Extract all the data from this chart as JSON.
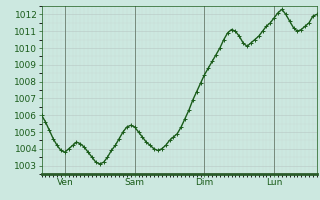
{
  "background_color": "#cce8e0",
  "plot_bg_color": "#cce8e0",
  "line_color": "#1a5c1a",
  "marker_color": "#1a5c1a",
  "grid_color_major": "#b8c8c4",
  "grid_color_minor": "#c8d8d4",
  "ylim": [
    1002.5,
    1012.5
  ],
  "yticks": [
    1003,
    1004,
    1005,
    1006,
    1007,
    1008,
    1009,
    1010,
    1011,
    1012
  ],
  "xtick_labels": [
    "Ven",
    "Sam",
    "Dim",
    "Lun"
  ],
  "x_values": [
    0,
    1,
    2,
    3,
    4,
    5,
    6,
    7,
    8,
    9,
    10,
    11,
    12,
    13,
    14,
    15,
    16,
    17,
    18,
    19,
    20,
    21,
    22,
    23,
    24,
    25,
    26,
    27,
    28,
    29,
    30,
    31,
    32,
    33,
    34,
    35,
    36,
    37,
    38,
    39,
    40,
    41,
    42,
    43,
    44,
    45,
    46,
    47,
    48,
    49,
    50,
    51,
    52,
    53,
    54,
    55,
    56,
    57,
    58,
    59,
    60,
    61,
    62,
    63,
    64,
    65,
    66,
    67,
    68,
    69,
    70,
    71
  ],
  "y_values": [
    1006.0,
    1005.6,
    1005.1,
    1004.6,
    1004.2,
    1003.9,
    1003.8,
    1004.0,
    1004.2,
    1004.4,
    1004.3,
    1004.1,
    1003.8,
    1003.5,
    1003.2,
    1003.1,
    1003.2,
    1003.5,
    1003.9,
    1004.2,
    1004.6,
    1005.0,
    1005.3,
    1005.4,
    1005.3,
    1005.0,
    1004.7,
    1004.4,
    1004.2,
    1004.0,
    1003.9,
    1004.0,
    1004.2,
    1004.5,
    1004.7,
    1004.9,
    1005.3,
    1005.8,
    1006.3,
    1006.9,
    1007.4,
    1007.9,
    1008.4,
    1008.8,
    1009.2,
    1009.6,
    1010.0,
    1010.5,
    1010.9,
    1011.1,
    1011.0,
    1010.7,
    1010.3,
    1010.1,
    1010.3,
    1010.5,
    1010.7,
    1011.0,
    1011.3,
    1011.5,
    1011.8,
    1012.1,
    1012.3,
    1012.0,
    1011.6,
    1011.2,
    1011.0,
    1011.1,
    1011.3,
    1011.5,
    1011.9,
    1012.0
  ],
  "vline_color": "#556655",
  "tick_color": "#1a5c1a",
  "axis_color": "#1a5c1a",
  "bottom_bar_color": "#2a5c2a",
  "font_size_ticks": 6.5,
  "line_width": 1.0,
  "marker_size": 2.5,
  "xtick_x": [
    6,
    24,
    42,
    60
  ],
  "xlim": [
    0,
    71
  ]
}
